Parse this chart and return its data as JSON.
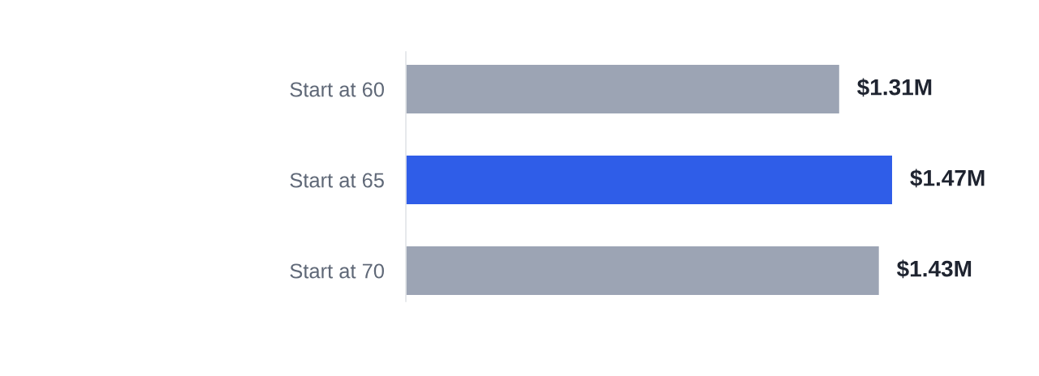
{
  "chart_data": {
    "type": "bar",
    "orientation": "horizontal",
    "categories": [
      "Start at 60",
      "Start at 65",
      "Start at 70"
    ],
    "values": [
      1.31,
      1.47,
      1.43
    ],
    "colors": [
      "#9ca4b4",
      "#2f5de8",
      "#9ca4b4"
    ],
    "value_labels": [
      "$1.31M",
      "$1.47M",
      "$1.43M"
    ],
    "tick_labels": "y"
  }
}
